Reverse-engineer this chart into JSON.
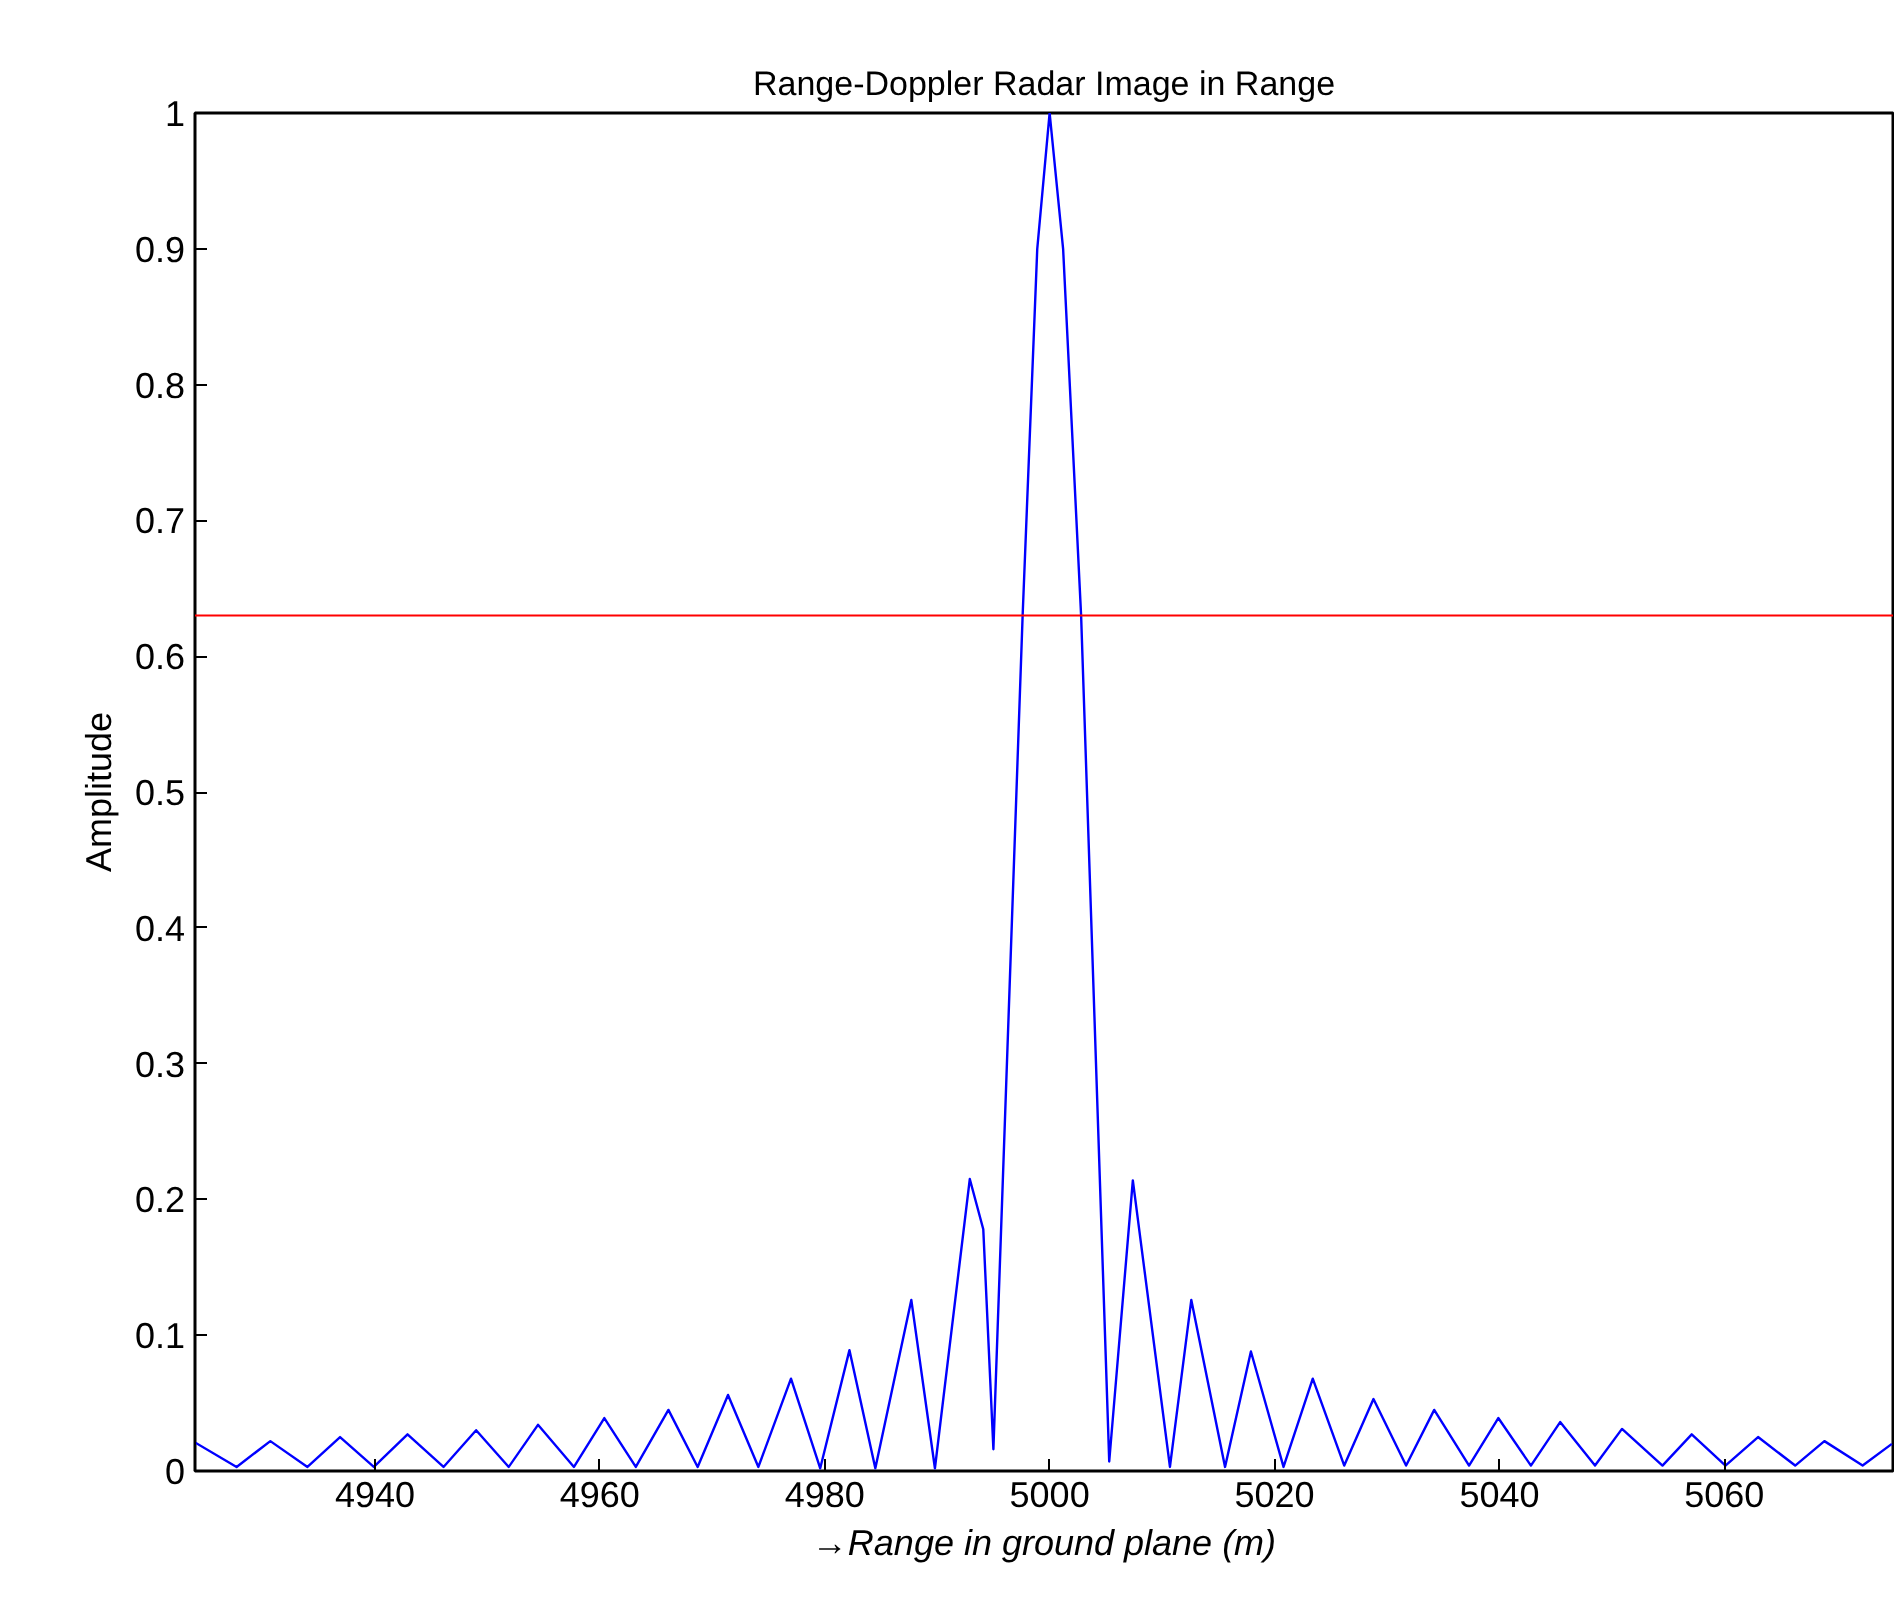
{
  "chart_data": {
    "type": "line",
    "title": "Range-Doppler Radar Image in Range",
    "xlabel": "→Range in ground plane (m)",
    "ylabel": "Amplitude",
    "x": [
      4924.0,
      4927.7,
      4930.7,
      4934.0,
      4936.9,
      4939.9,
      4942.9,
      4946.1,
      4949.0,
      4951.9,
      4954.5,
      4957.7,
      4960.4,
      4963.2,
      4966.1,
      4968.7,
      4971.4,
      4974.1,
      4977.0,
      4979.6,
      4982.2,
      4984.5,
      4987.7,
      4989.8,
      4992.9,
      4994.1,
      4995.0,
      4997.6,
      4998.9,
      5000.0,
      5001.2,
      5002.8,
      5005.3,
      5007.4,
      5010.7,
      5012.6,
      5015.6,
      5017.9,
      5020.8,
      5023.4,
      5026.2,
      5028.8,
      5031.7,
      5034.2,
      5037.3,
      5039.9,
      5042.8,
      5045.4,
      5048.5,
      5050.9,
      5054.5,
      5057.1,
      5060.1,
      5063.0,
      5066.3,
      5068.9,
      5072.3,
      5074.9
    ],
    "series": [
      {
        "color": "#0000ff",
        "values": [
          0.021,
          0.003,
          0.022,
          0.003,
          0.025,
          0.003,
          0.027,
          0.003,
          0.03,
          0.003,
          0.034,
          0.003,
          0.039,
          0.003,
          0.045,
          0.003,
          0.056,
          0.003,
          0.068,
          0.002,
          0.089,
          0.002,
          0.126,
          0.002,
          0.215,
          0.178,
          0.016,
          0.63,
          0.9,
          1.0,
          0.9,
          0.63,
          0.007,
          0.214,
          0.003,
          0.126,
          0.003,
          0.088,
          0.003,
          0.068,
          0.004,
          0.053,
          0.004,
          0.045,
          0.004,
          0.039,
          0.004,
          0.036,
          0.004,
          0.031,
          0.004,
          0.027,
          0.004,
          0.025,
          0.004,
          0.022,
          0.004,
          0.02
        ]
      }
    ],
    "xlim": [
      4924,
      5075
    ],
    "ylim": [
      0,
      1
    ],
    "xticks": [
      4940,
      4960,
      4980,
      5000,
      5020,
      5040,
      5060
    ],
    "yticks": [
      0,
      0.1,
      0.2,
      0.3,
      0.4,
      0.5,
      0.6,
      0.7,
      0.8,
      0.9,
      1
    ],
    "ref_lines": [
      {
        "axis": "y",
        "value": 0.63,
        "color": "#ff0000"
      }
    ],
    "grid": false,
    "marker": "none",
    "line_style": "solid"
  }
}
